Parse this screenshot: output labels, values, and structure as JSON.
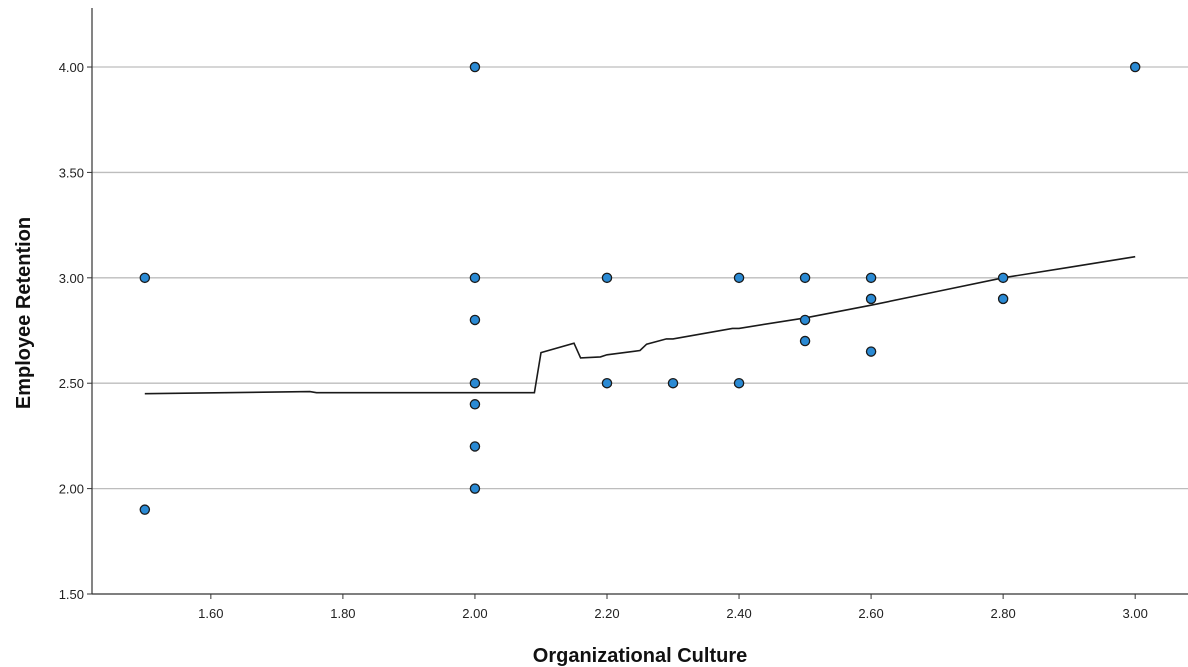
{
  "chart_data": {
    "type": "scatter",
    "title": "",
    "xlabel": "Organizational Culture",
    "ylabel": "Employee Retention",
    "xlim": [
      1.42,
      3.08
    ],
    "ylim": [
      1.5,
      4.28
    ],
    "x_ticks": [
      1.6,
      1.8,
      2.0,
      2.2,
      2.4,
      2.6,
      2.8,
      3.0
    ],
    "x_tick_labels": [
      "1.60",
      "1.80",
      "2.00",
      "2.20",
      "2.40",
      "2.60",
      "2.80",
      "3.00"
    ],
    "y_ticks": [
      1.5,
      2.0,
      2.5,
      3.0,
      3.5,
      4.0
    ],
    "y_tick_labels": [
      "1.50",
      "2.00",
      "2.50",
      "3.00",
      "3.50",
      "4.00"
    ],
    "grid": "horizontal",
    "points": [
      {
        "x": 1.5,
        "y": 3.0
      },
      {
        "x": 1.5,
        "y": 1.9
      },
      {
        "x": 2.0,
        "y": 4.0
      },
      {
        "x": 2.0,
        "y": 3.0
      },
      {
        "x": 2.0,
        "y": 2.8
      },
      {
        "x": 2.0,
        "y": 2.5
      },
      {
        "x": 2.0,
        "y": 2.4
      },
      {
        "x": 2.0,
        "y": 2.2
      },
      {
        "x": 2.0,
        "y": 2.0
      },
      {
        "x": 2.2,
        "y": 3.0
      },
      {
        "x": 2.2,
        "y": 2.5
      },
      {
        "x": 2.3,
        "y": 2.5
      },
      {
        "x": 2.4,
        "y": 3.0
      },
      {
        "x": 2.4,
        "y": 2.5
      },
      {
        "x": 2.5,
        "y": 3.0
      },
      {
        "x": 2.5,
        "y": 2.8
      },
      {
        "x": 2.5,
        "y": 2.7
      },
      {
        "x": 2.6,
        "y": 3.0
      },
      {
        "x": 2.6,
        "y": 2.9
      },
      {
        "x": 2.6,
        "y": 2.65
      },
      {
        "x": 2.8,
        "y": 3.0
      },
      {
        "x": 2.8,
        "y": 2.9
      },
      {
        "x": 3.0,
        "y": 4.0
      }
    ],
    "fit_line": {
      "x": [
        1.5,
        1.75,
        1.76,
        2.09,
        2.1,
        2.15,
        2.16,
        2.19,
        2.2,
        2.25,
        2.26,
        2.29,
        2.3,
        2.39,
        2.4,
        2.5,
        2.6,
        2.7,
        2.8,
        2.9,
        3.0
      ],
      "y": [
        2.45,
        2.46,
        2.455,
        2.455,
        2.645,
        2.69,
        2.62,
        2.625,
        2.635,
        2.655,
        2.685,
        2.71,
        2.71,
        2.76,
        2.76,
        2.81,
        2.87,
        2.935,
        3.0,
        3.05,
        3.1
      ]
    },
    "point_color": "#2a8ad4",
    "point_edge_color": "#1a1a1a",
    "line_color": "#1a1a1a",
    "grid_color": "#bdbdbd"
  }
}
